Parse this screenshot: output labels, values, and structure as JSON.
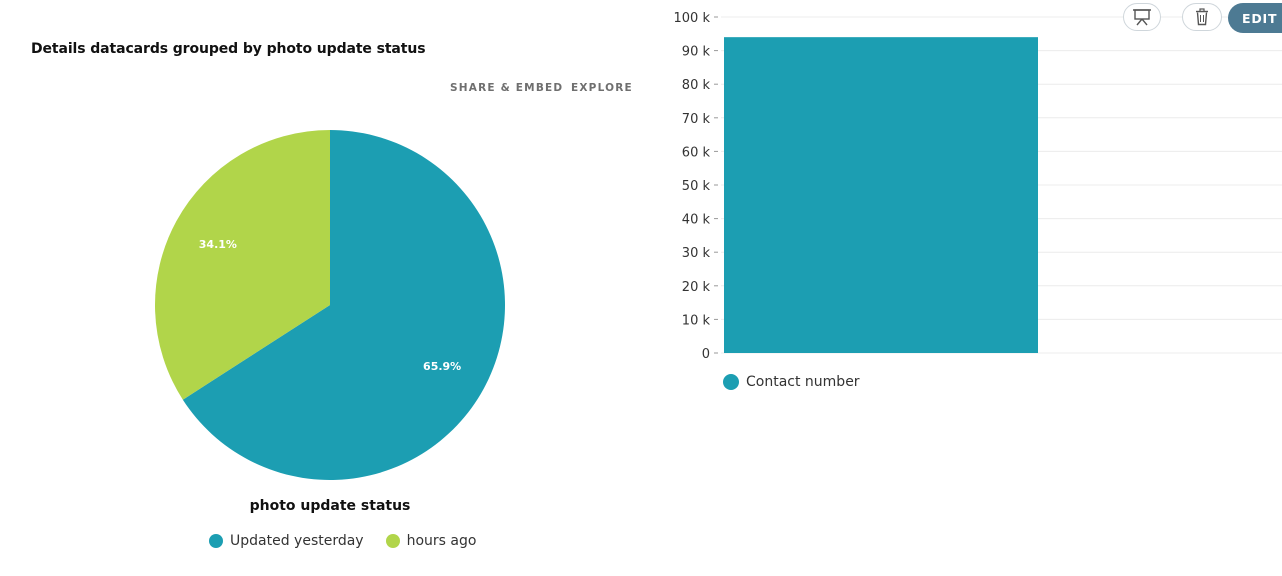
{
  "left_panel": {
    "title": "Details datacards grouped by photo update status",
    "share_embed_label": "SHARE & EMBED",
    "explore_label": "EXPLORE"
  },
  "toolbar": {
    "present_icon": "presentation-icon",
    "delete_icon": "trash-icon",
    "edit_label": "EDIT"
  },
  "chart_data": [
    {
      "type": "pie",
      "title": "Details datacards grouped by photo update status",
      "xlabel": "photo update status",
      "slices": [
        {
          "label": "Updated yesterday",
          "value": 65.9,
          "display": "65.9%",
          "color": "#1c9eb2"
        },
        {
          "label": "hours ago",
          "value": 34.1,
          "display": "34.1%",
          "color": "#b1d54a"
        }
      ],
      "legend_position": "bottom"
    },
    {
      "type": "bar",
      "categories": [
        ""
      ],
      "series": [
        {
          "name": "Contact number",
          "values": [
            94000
          ],
          "color": "#1c9eb2"
        }
      ],
      "ylim": [
        0,
        100000
      ],
      "yticks": [
        0,
        10000,
        20000,
        30000,
        40000,
        50000,
        60000,
        70000,
        80000,
        90000,
        100000
      ],
      "ytick_labels": [
        "0",
        "10 k",
        "20 k",
        "30 k",
        "40 k",
        "50 k",
        "60 k",
        "70 k",
        "80 k",
        "90 k",
        "100 k"
      ],
      "grid": true,
      "legend_position": "bottom-left"
    }
  ]
}
